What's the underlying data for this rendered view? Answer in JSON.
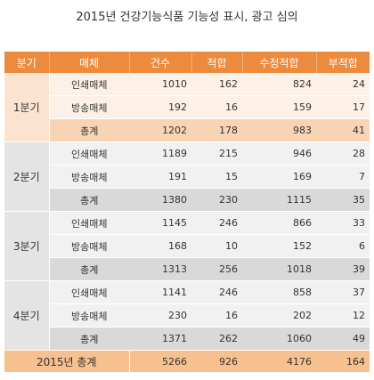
{
  "title": "2015년 건강기능식품 기능성 표시, 광고 심의",
  "headers": [
    "분기",
    "매체",
    "건수",
    "적합",
    "수정적합",
    "부적합"
  ],
  "quarters": [
    {
      "label": "1분기",
      "rows": [
        {
          "medium": "인쇄매체",
          "count": "1010",
          "pass": "162",
          "mod": "824",
          "fail": "24"
        },
        {
          "medium": "방송매체",
          "count": "192",
          "pass": "16",
          "mod": "159",
          "fail": "17"
        },
        {
          "medium": "총계",
          "count": "1202",
          "pass": "178",
          "mod": "983",
          "fail": "41"
        }
      ]
    },
    {
      "label": "2분기",
      "rows": [
        {
          "medium": "인쇄매체",
          "count": "1189",
          "pass": "215",
          "mod": "946",
          "fail": "28"
        },
        {
          "medium": "방송매체",
          "count": "191",
          "pass": "15",
          "mod": "169",
          "fail": "7"
        },
        {
          "medium": "총계",
          "count": "1380",
          "pass": "230",
          "mod": "1115",
          "fail": "35"
        }
      ]
    },
    {
      "label": "3분기",
      "rows": [
        {
          "medium": "인쇄매체",
          "count": "1145",
          "pass": "246",
          "mod": "866",
          "fail": "33"
        },
        {
          "medium": "방송매체",
          "count": "168",
          "pass": "10",
          "mod": "152",
          "fail": "6"
        },
        {
          "medium": "총계",
          "count": "1313",
          "pass": "256",
          "mod": "1018",
          "fail": "39"
        }
      ]
    },
    {
      "label": "4분기",
      "rows": [
        {
          "medium": "인쇄매체",
          "count": "1141",
          "pass": "246",
          "mod": "858",
          "fail": "37"
        },
        {
          "medium": "방송매체",
          "count": "230",
          "pass": "16",
          "mod": "202",
          "fail": "12"
        },
        {
          "medium": "총계",
          "count": "1371",
          "pass": "262",
          "mod": "1060",
          "fail": "49"
        }
      ]
    }
  ],
  "total": {
    "label": "2015년 총계",
    "count": "5266",
    "pass": "926",
    "mod": "4176",
    "fail": "164"
  },
  "colors": {
    "header": "#ec8a3e",
    "orange_light": "#fdf1e7",
    "orange_sub": "#f9d4b4",
    "gray_light": "#f1f1f1",
    "gray_sub": "#d9d9d9",
    "total": "#f6c08f"
  }
}
